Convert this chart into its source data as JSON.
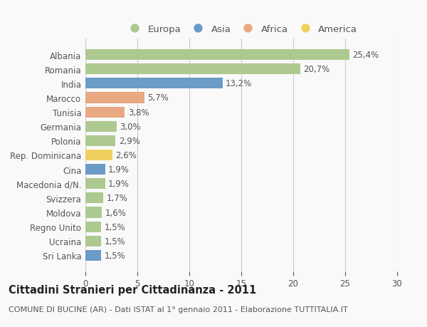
{
  "categories": [
    "Albania",
    "Romania",
    "India",
    "Marocco",
    "Tunisia",
    "Germania",
    "Polonia",
    "Rep. Dominicana",
    "Cina",
    "Macedonia d/N.",
    "Svizzera",
    "Moldova",
    "Regno Unito",
    "Ucraina",
    "Sri Lanka"
  ],
  "values": [
    25.4,
    20.7,
    13.2,
    5.7,
    3.8,
    3.0,
    2.9,
    2.6,
    1.9,
    1.9,
    1.7,
    1.6,
    1.5,
    1.5,
    1.5
  ],
  "labels": [
    "25,4%",
    "20,7%",
    "13,2%",
    "5,7%",
    "3,8%",
    "3,0%",
    "2,9%",
    "2,6%",
    "1,9%",
    "1,9%",
    "1,7%",
    "1,6%",
    "1,5%",
    "1,5%",
    "1,5%"
  ],
  "continents": [
    "Europa",
    "Europa",
    "Asia",
    "Africa",
    "Africa",
    "Europa",
    "Europa",
    "America",
    "Asia",
    "Europa",
    "Europa",
    "Europa",
    "Europa",
    "Europa",
    "Asia"
  ],
  "continent_colors": {
    "Europa": "#adc990",
    "Asia": "#6b9bc7",
    "Africa": "#e8a882",
    "America": "#f0d060"
  },
  "legend_order": [
    "Europa",
    "Asia",
    "Africa",
    "America"
  ],
  "xlim": [
    0,
    30
  ],
  "xticks": [
    0,
    5,
    10,
    15,
    20,
    25,
    30
  ],
  "title": "Cittadini Stranieri per Cittadinanza - 2011",
  "subtitle": "COMUNE DI BUCINE (AR) - Dati ISTAT al 1° gennaio 2011 - Elaborazione TUTTITALIA.IT",
  "bg_color": "#f9f9f9",
  "grid_color": "#cccccc",
  "bar_height": 0.75,
  "label_fontsize": 8.5,
  "title_fontsize": 10.5,
  "subtitle_fontsize": 8,
  "tick_fontsize": 8.5,
  "legend_fontsize": 9.5
}
